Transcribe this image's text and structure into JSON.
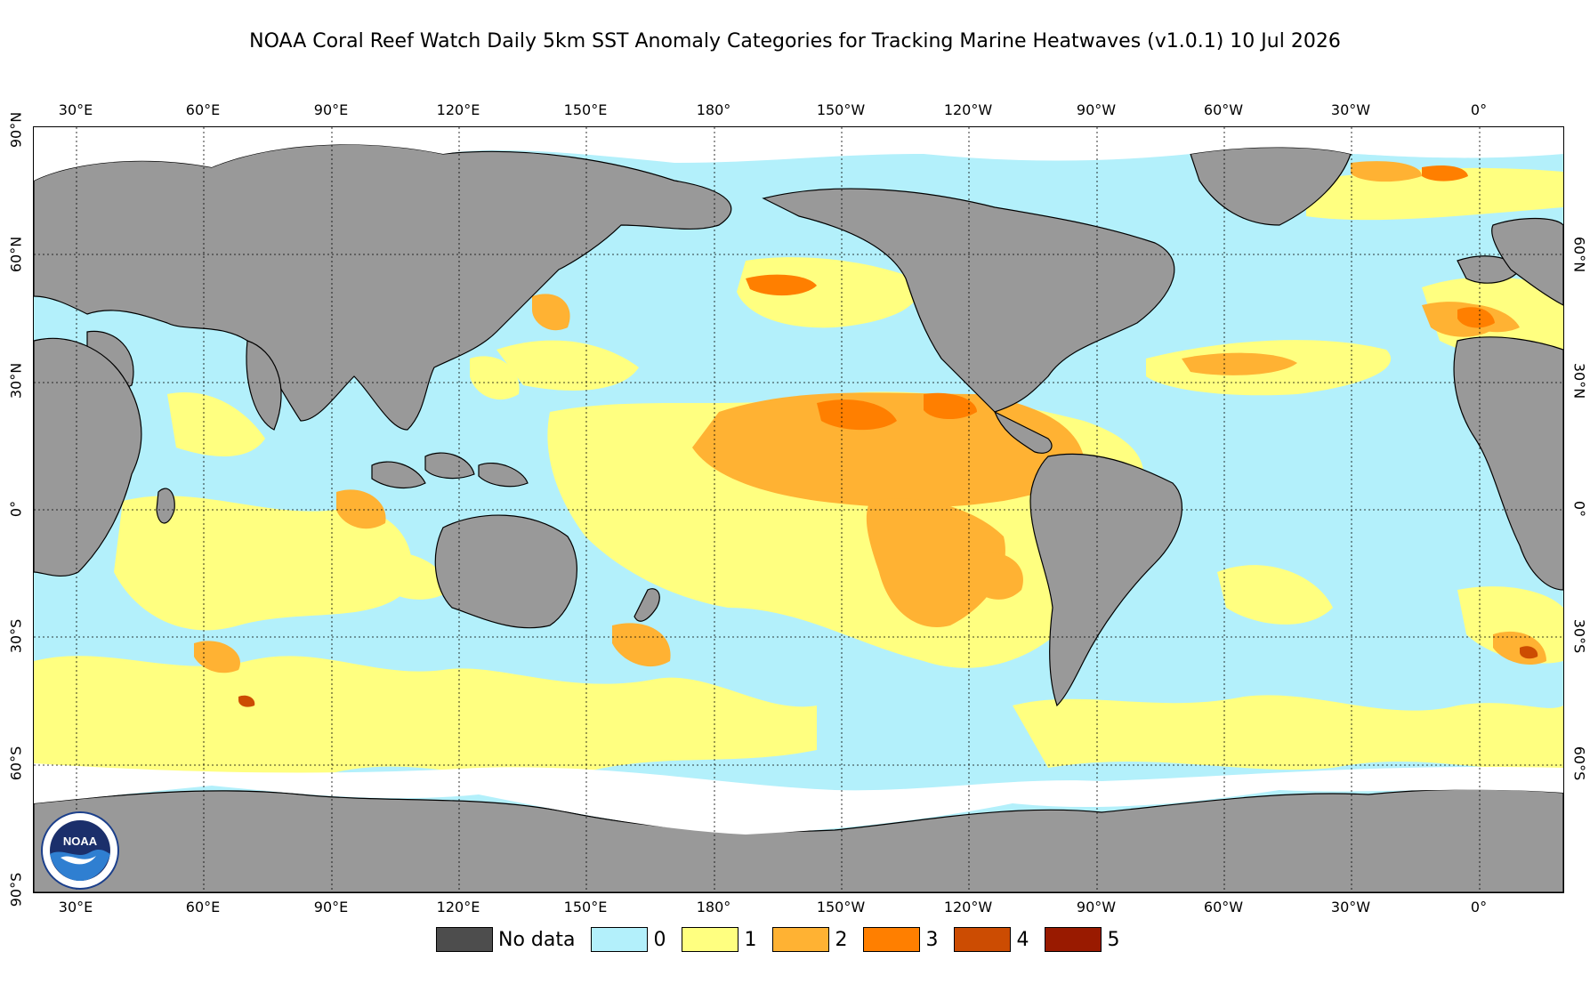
{
  "title": "NOAA Coral Reef Watch Daily 5km SST Anomaly Categories for Tracking Marine Heatwaves  (v1.0.1)   10 Jul 2026",
  "lon_labels": [
    "30°E",
    "60°E",
    "90°E",
    "120°E",
    "150°E",
    "180°",
    "150°W",
    "120°W",
    "90°W",
    "60°W",
    "30°W",
    "0°"
  ],
  "lat_labels_left": [
    "90°N",
    "60°N",
    "30°N",
    "0°",
    "30°S",
    "60°S",
    "90°S"
  ],
  "lat_labels_right": [
    "60°N",
    "30°N",
    "0°",
    "30°S",
    "60°S"
  ],
  "legend": [
    {
      "label": "No data",
      "color": "#4d4d4d"
    },
    {
      "label": "0",
      "color": "#b3f0fb"
    },
    {
      "label": "1",
      "color": "#ffff80"
    },
    {
      "label": "2",
      "color": "#ffb233"
    },
    {
      "label": "3",
      "color": "#ff7f00"
    },
    {
      "label": "4",
      "color": "#cc4c02"
    },
    {
      "label": "5",
      "color": "#991a00"
    }
  ],
  "colors": {
    "land": "#999999",
    "ice": "#ffffff",
    "ocean_category_0": "#b3f0fb",
    "category_1": "#ffff80",
    "category_2": "#ffb233",
    "category_3": "#ff7f00"
  },
  "logo": {
    "text": "NOAA",
    "icon": "noaa-logo-icon"
  }
}
